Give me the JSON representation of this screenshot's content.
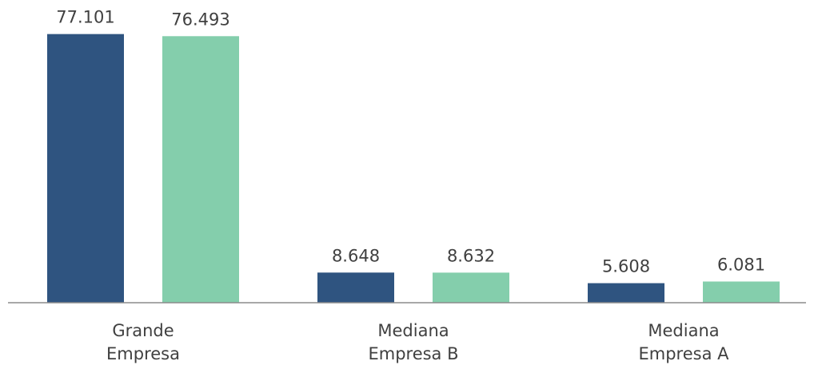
{
  "chart_data": {
    "type": "bar",
    "categories": [
      [
        "Grande",
        "Empresa"
      ],
      [
        "Mediana",
        "Empresa B"
      ],
      [
        "Mediana",
        "Empresa A"
      ]
    ],
    "series": [
      {
        "values": [
          77101,
          8648,
          5608
        ],
        "labels": [
          "77.101",
          "8.648",
          "5.608"
        ],
        "color": "#2f5480"
      },
      {
        "values": [
          76493,
          8632,
          6081
        ],
        "labels": [
          "76.493",
          "8.632",
          "6.081"
        ],
        "color": "#84ceac"
      }
    ],
    "ylim": [
      0,
      80000
    ],
    "grid": false,
    "legend": "none",
    "axis_color": "#8c8c8c"
  }
}
